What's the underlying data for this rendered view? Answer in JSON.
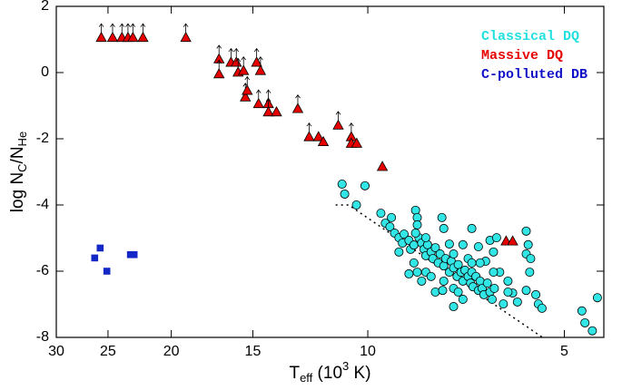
{
  "chart_data": {
    "type": "scatter",
    "xscale": "log",
    "xlim": [
      30,
      4.35
    ],
    "ylim": [
      -8,
      2
    ],
    "xticks": [
      30,
      25,
      20,
      15,
      10,
      5
    ],
    "yticks": [
      -8,
      -6,
      -4,
      -2,
      0,
      2
    ],
    "xlabel": [
      {
        "text": "T"
      },
      {
        "text": "eff",
        "baseline": "sub"
      },
      {
        "text": " (10"
      },
      {
        "text": "3",
        "baseline": "super"
      },
      {
        "text": " K)"
      }
    ],
    "ylabel": [
      {
        "text": "log N"
      },
      {
        "text": "C",
        "baseline": "sub"
      },
      {
        "text": "/N"
      },
      {
        "text": "He",
        "baseline": "sub"
      }
    ],
    "legend": "upper right",
    "reference_line": {
      "x": [
        11.2,
        10.7,
        5.4
      ],
      "values": [
        -4,
        -4,
        -8
      ],
      "color": "#000000",
      "style": "dotted"
    },
    "series": [
      {
        "name": "Classical DQ",
        "color": "#33e6e6",
        "legend_color": "#22e0e0",
        "marker": "circle",
        "x": [
          10.95,
          10.85,
          10.41,
          10.1,
          9.55,
          9.4,
          9.25,
          9.2,
          9.1,
          8.96,
          8.8,
          8.85,
          8.65,
          8.6,
          8.5,
          8.45,
          8.4,
          8.35,
          8.27,
          8.2,
          8.15,
          8.1,
          8.0,
          7.95,
          7.88,
          7.8,
          7.75,
          7.7,
          7.65,
          7.6,
          7.5,
          7.45,
          7.39,
          7.3,
          7.27,
          7.2,
          7.15,
          7.1,
          7.02,
          6.96,
          6.93,
          6.9,
          6.83,
          6.77,
          6.73,
          6.68,
          6.64,
          6.56,
          6.5,
          6.45,
          6.4,
          6.93,
          6.77,
          6.5,
          6.35,
          6.6,
          6.42,
          6.28,
          6.1,
          6.0,
          5.9,
          5.72,
          5.68,
          5.72,
          5.65,
          5.72,
          5.63,
          5.53,
          5.48,
          5.41,
          7.39,
          7.15,
          7.88,
          8.27,
          8.65,
          7.65,
          7.39,
          8.15,
          8.5,
          8.96,
          8.4,
          8.0,
          7.68,
          7.27,
          8.45,
          8.15,
          7.5,
          7.15,
          7.65,
          8.4,
          7.02,
          6.73,
          7.39,
          6.93,
          4.7,
          4.65,
          4.53,
          4.45,
          6.42,
          6.1,
          6.2
        ],
        "values": [
          -3.37,
          -3.67,
          -4.0,
          -3.42,
          -4.25,
          -4.55,
          -4.66,
          -4.38,
          -4.85,
          -4.99,
          -4.88,
          -5.15,
          -5.07,
          -5.34,
          -5.21,
          -4.16,
          -4.38,
          -4.99,
          -5.15,
          -5.34,
          -5.53,
          -5.2,
          -5.42,
          -5.62,
          -5.29,
          -5.75,
          -5.48,
          -4.38,
          -5.84,
          -5.62,
          -6.03,
          -5.7,
          -5.9,
          -6.16,
          -5.8,
          -6.03,
          -6.3,
          -5.97,
          -6.16,
          -6.36,
          -6.03,
          -6.47,
          -6.16,
          -6.58,
          -6.3,
          -6.52,
          -6.71,
          -6.36,
          -6.63,
          -6.85,
          -6.52,
          -4.71,
          -5.26,
          -5.07,
          -4.99,
          -5.7,
          -5.42,
          -6.03,
          -6.3,
          -6.66,
          -6.93,
          -4.79,
          -5.2,
          -5.48,
          -6.03,
          -6.58,
          -5.62,
          -6.71,
          -6.99,
          -7.12,
          -7.07,
          -6.85,
          -6.63,
          -6.3,
          -6.08,
          -6.3,
          -6.52,
          -6.03,
          -5.75,
          -5.42,
          -6.03,
          -6.16,
          -6.58,
          -6.63,
          -4.85,
          -4.99,
          -5.18,
          -5.2,
          -4.71,
          -4.6,
          -5.62,
          -5.75,
          -5.48,
          -5.75,
          -7.2,
          -7.56,
          -7.8,
          -6.8,
          -6.03,
          -6.63,
          -6.99
        ]
      },
      {
        "name": "Massive DQ",
        "color": "#e60000",
        "legend_color": "#e60000",
        "marker": "triangle",
        "x": [
          25.6,
          24.6,
          23.8,
          23.3,
          22.9,
          22.1,
          19.0,
          16.9,
          16.9,
          16.2,
          15.9,
          15.8,
          15.5,
          14.8,
          14.6,
          15.4,
          15.3,
          14.7,
          14.2,
          14.2,
          13.8,
          12.8,
          12.3,
          11.9,
          11.7,
          11.1,
          10.6,
          10.6,
          10.4,
          9.5,
          6.14,
          6.0
        ],
        "values": [
          1.05,
          1.05,
          1.05,
          1.05,
          1.05,
          1.05,
          1.05,
          0.4,
          -0.05,
          0.3,
          0.3,
          0.0,
          0.05,
          0.3,
          0.05,
          -0.75,
          -0.55,
          -0.95,
          -0.95,
          -1.2,
          -1.2,
          -1.1,
          -1.95,
          -1.95,
          -2.1,
          -1.6,
          -1.95,
          -2.15,
          -2.15,
          -2.85,
          -5.1,
          -5.1
        ],
        "lower_limit": [
          true,
          true,
          true,
          true,
          true,
          true,
          true,
          true,
          true,
          true,
          true,
          true,
          true,
          true,
          true,
          true,
          true,
          true,
          true,
          true,
          false,
          true,
          true,
          false,
          false,
          true,
          true,
          false,
          false,
          false,
          false,
          false
        ]
      },
      {
        "name": "C-polluted DB",
        "color": "#1428c8",
        "legend_color": "#1010c8",
        "marker": "square",
        "x": [
          26.2,
          25.7,
          25.1,
          23.1,
          22.8
        ],
        "values": [
          -5.6,
          -5.3,
          -6.0,
          -5.5,
          -5.5
        ]
      }
    ]
  }
}
